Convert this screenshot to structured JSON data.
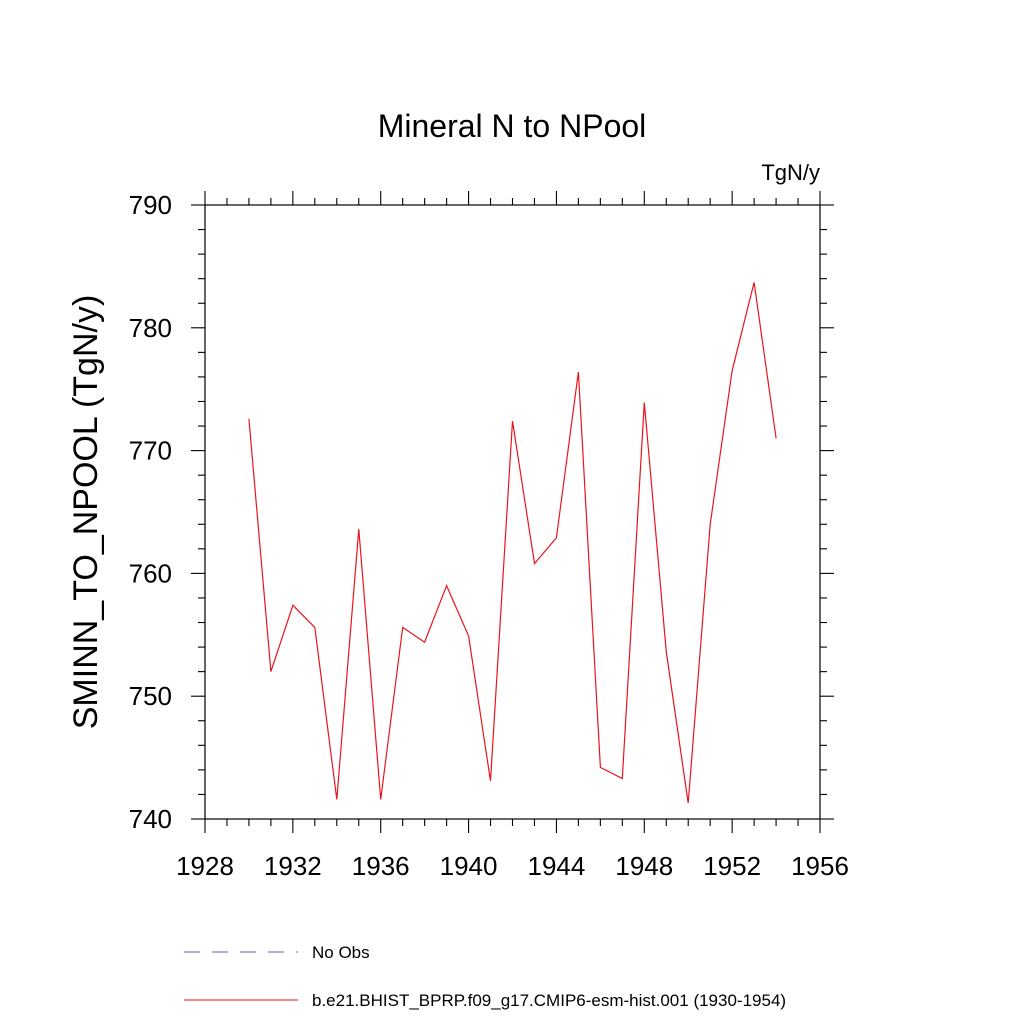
{
  "chart_data": {
    "type": "line",
    "title": "Mineral N to NPool",
    "units_label": "TgN/y",
    "ylabel": "SMINN_TO_NPOOL  (TgN/y)",
    "xlabel": "",
    "xlim": [
      1928,
      1956
    ],
    "ylim": [
      740,
      790
    ],
    "x_ticks": [
      1928,
      1932,
      1936,
      1940,
      1944,
      1948,
      1952,
      1956
    ],
    "x_tick_labels": [
      "1928",
      "1932",
      "1936",
      "1940",
      "1944",
      "1948",
      "1952",
      "1956"
    ],
    "y_ticks": [
      740,
      750,
      760,
      770,
      780,
      790
    ],
    "y_tick_labels": [
      "740",
      "750",
      "760",
      "770",
      "780",
      "790"
    ],
    "x_minor_step": 1,
    "y_minor_step": 2,
    "grid": false,
    "legend_position": "bottom",
    "series": [
      {
        "name": "b.e21.BHIST_BPRP.f09_g17.CMIP6-esm-hist.001 (1930-1954)",
        "color": "#e8141e",
        "style": "solid",
        "x": [
          1930,
          1931,
          1932,
          1933,
          1934,
          1935,
          1936,
          1937,
          1938,
          1939,
          1940,
          1941,
          1942,
          1943,
          1944,
          1945,
          1946,
          1947,
          1948,
          1949,
          1950,
          1951,
          1952,
          1953,
          1954
        ],
        "values": [
          772.6,
          752.0,
          757.4,
          755.6,
          741.6,
          763.6,
          741.6,
          755.6,
          754.4,
          759.0,
          754.9,
          743.1,
          772.4,
          760.8,
          762.9,
          776.4,
          744.2,
          743.3,
          773.9,
          753.6,
          741.3,
          764.0,
          776.5,
          783.7,
          771.0
        ]
      }
    ],
    "legend": [
      {
        "label": "No Obs",
        "color": "#6b5fb0",
        "style": "dashed"
      },
      {
        "label": "b.e21.BHIST_BPRP.f09_g17.CMIP6-esm-hist.001 (1930-1954)",
        "color": "#e8141e",
        "style": "solid"
      }
    ]
  }
}
